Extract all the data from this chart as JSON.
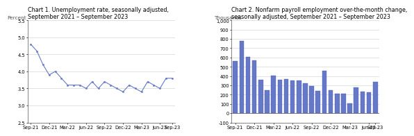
{
  "chart1_title": "Chart 1. Unemployment rate, seasonally adjusted,\nSeptember 2021 – September 2023",
  "chart1_ylabel": "Percent",
  "chart1_ylim": [
    2.5,
    5.5
  ],
  "chart1_yticks": [
    2.5,
    3.0,
    3.5,
    4.0,
    4.5,
    5.0,
    5.5
  ],
  "chart1_data": [
    4.8,
    4.6,
    4.2,
    3.9,
    4.0,
    3.8,
    3.6,
    3.6,
    3.6,
    3.5,
    3.7,
    3.5,
    3.7,
    3.6,
    3.5,
    3.4,
    3.6,
    3.5,
    3.4,
    3.7,
    3.6,
    3.5,
    3.8,
    3.8
  ],
  "chart1_xtick_labels": [
    "Sep-21",
    "Dec-21",
    "Mar-22",
    "Jun-22",
    "Sep-22",
    "Dec-22",
    "Mar-23",
    "Jun-23",
    "Sep-23"
  ],
  "chart1_xtick_positions": [
    0,
    3,
    6,
    9,
    12,
    15,
    18,
    21,
    23
  ],
  "chart1_line_color": "#6678c8",
  "chart1_marker": "o",
  "chart1_marker_size": 1.8,
  "chart2_title": "Chart 2. Nonfarm payroll employment over-the-month change,\nseasonally adjusted, September 2021 – September 2023",
  "chart2_ylabel": "Thousands",
  "chart2_ylim": [
    -100,
    1000
  ],
  "chart2_yticks": [
    -100,
    0,
    100,
    200,
    300,
    400,
    500,
    600,
    700,
    800,
    900,
    1000
  ],
  "chart2_ytick_labels": [
    "-100",
    "0",
    "100",
    "200",
    "300",
    "400",
    "500",
    "600",
    "700",
    "800",
    "900",
    "1,000"
  ],
  "chart2_data": [
    559,
    778,
    610,
    570,
    360,
    250,
    408,
    360,
    370,
    350,
    350,
    320,
    290,
    240,
    460,
    245,
    210,
    210,
    105,
    280,
    236,
    224,
    336
  ],
  "chart2_xtick_labels": [
    "Sep-21",
    "Dec-21",
    "Mar-22",
    "Jun-22",
    "Sep-22",
    "Dec-22",
    "Mar-23",
    "Jun-23",
    "Sep-23"
  ],
  "chart2_xtick_positions": [
    0,
    3,
    6,
    9,
    12,
    15,
    18,
    21,
    22
  ],
  "chart2_bar_color": "#6678c8",
  "chart2_bar_edge_color": "#4455aa",
  "bg_color": "#ffffff",
  "grid_color": "#cccccc",
  "title_fontsize": 5.8,
  "label_fontsize": 5.3,
  "tick_fontsize": 4.8
}
